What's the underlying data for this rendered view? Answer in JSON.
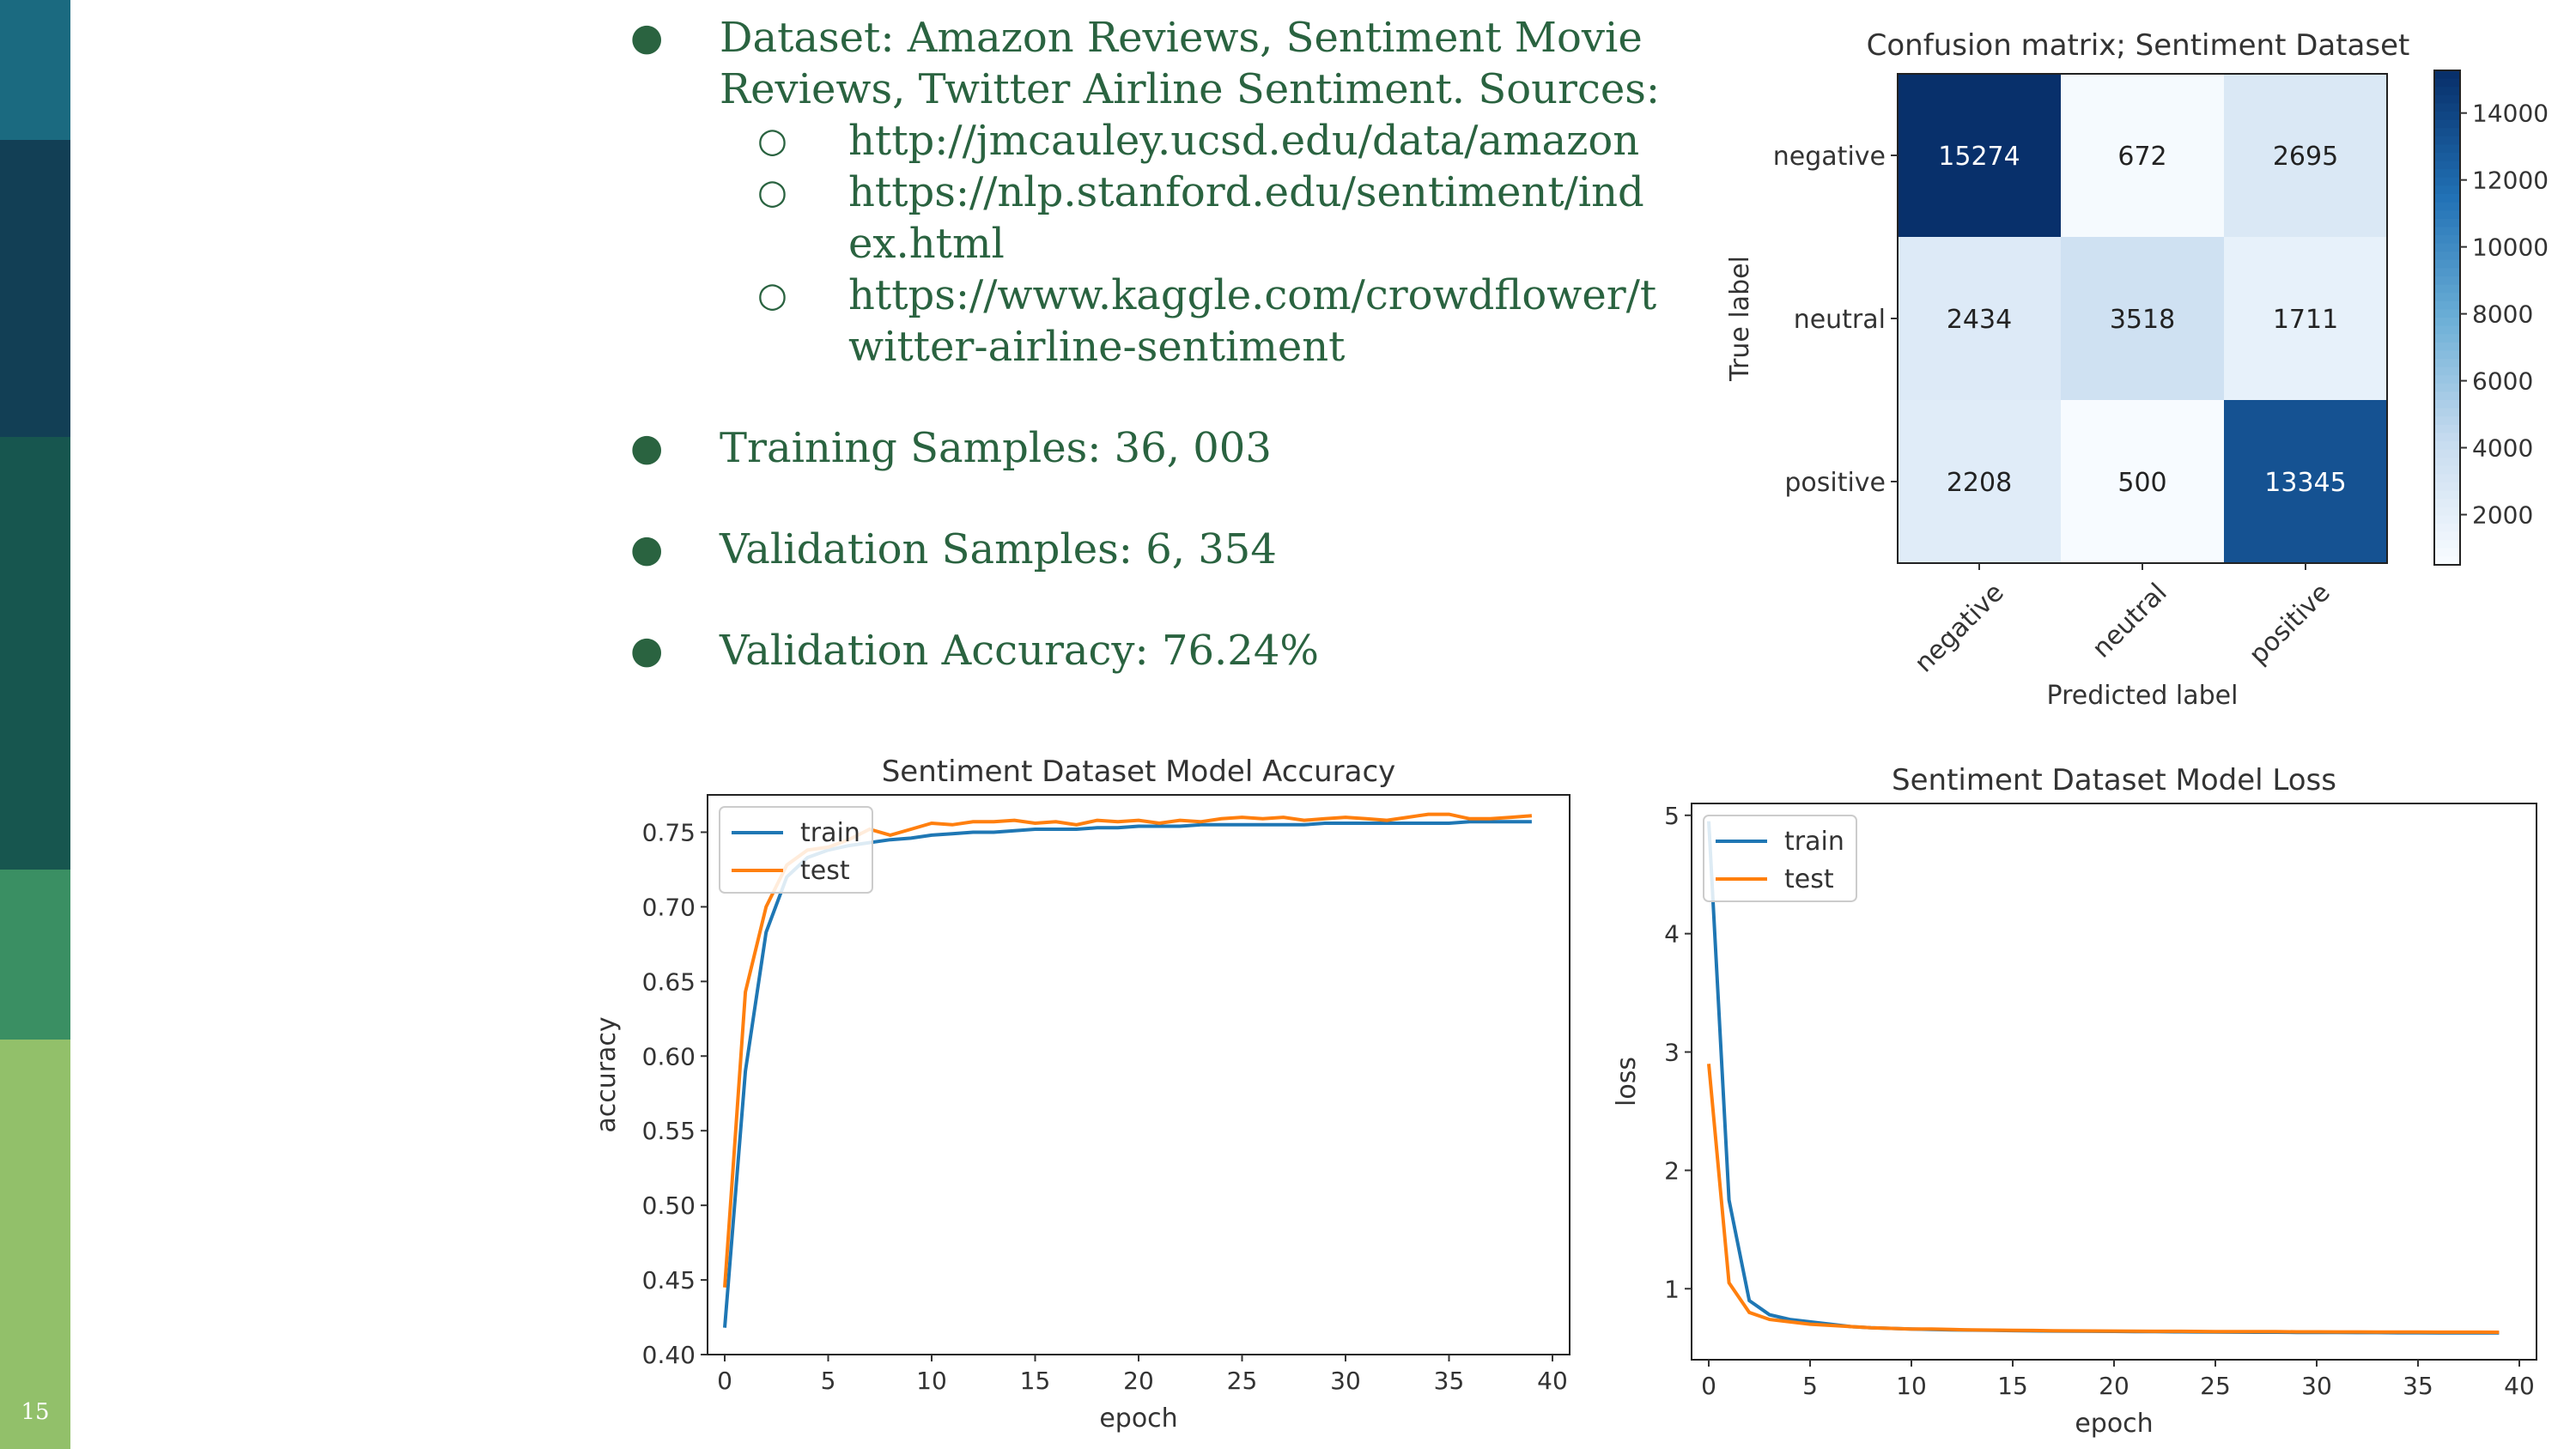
{
  "slide": {
    "number": "15"
  },
  "sidebar_colors": [
    "#1b6a80",
    "#123f55",
    "#17564f",
    "#3a8f63",
    "#92c06a"
  ],
  "bullets": {
    "dataset_line1": "Dataset: Amazon Reviews, Sentiment Movie",
    "dataset_line2": "Reviews, Twitter Airline Sentiment. Sources:",
    "sources": [
      {
        "line1": "http://jmcauley.ucsd.edu/data/amazon",
        "line2": ""
      },
      {
        "line1": "https://nlp.stanford.edu/sentiment/ind",
        "line2": "ex.html"
      },
      {
        "line1": "https://www.kaggle.com/crowdflower/t",
        "line2": "witter-airline-sentiment"
      }
    ],
    "training": "Training Samples: 36, 003",
    "validation": "Validation Samples: 6, 354",
    "accuracy": "Validation Accuracy: 76.24%"
  },
  "chart_data": [
    {
      "type": "heatmap",
      "title": "Confusion matrix; Sentiment Dataset",
      "xlabel": "Predicted label",
      "ylabel": "True label",
      "x_categories": [
        "negative",
        "neutral",
        "positive"
      ],
      "y_categories": [
        "negative",
        "neutral",
        "positive"
      ],
      "matrix": [
        [
          15274,
          672,
          2695
        ],
        [
          2434,
          3518,
          1711
        ],
        [
          2208,
          500,
          13345
        ]
      ],
      "colorbar_ticks": [
        2000,
        4000,
        6000,
        8000,
        10000,
        12000,
        14000
      ],
      "colorscale": "Blues"
    },
    {
      "type": "line",
      "title": "Sentiment Dataset Model Accuracy",
      "xlabel": "epoch",
      "ylabel": "accuracy",
      "xlim": [
        0,
        40
      ],
      "ylim": [
        0.4,
        0.775
      ],
      "x_ticks": [
        0,
        5,
        10,
        15,
        20,
        25,
        30,
        35,
        40
      ],
      "y_ticks": [
        "0.40",
        "0.45",
        "0.50",
        "0.55",
        "0.60",
        "0.65",
        "0.70",
        "0.75"
      ],
      "legend": "upper left",
      "series": [
        {
          "name": "train",
          "color": "#1f77b4",
          "values": [
            0.418,
            0.59,
            0.683,
            0.72,
            0.733,
            0.738,
            0.741,
            0.743,
            0.745,
            0.746,
            0.748,
            0.749,
            0.75,
            0.75,
            0.751,
            0.752,
            0.752,
            0.752,
            0.753,
            0.753,
            0.754,
            0.754,
            0.754,
            0.755,
            0.755,
            0.755,
            0.755,
            0.755,
            0.755,
            0.756,
            0.756,
            0.756,
            0.756,
            0.756,
            0.756,
            0.756,
            0.757,
            0.757,
            0.757,
            0.757
          ]
        },
        {
          "name": "test",
          "color": "#ff7f0e",
          "values": [
            0.445,
            0.643,
            0.7,
            0.728,
            0.738,
            0.74,
            0.745,
            0.752,
            0.748,
            0.752,
            0.756,
            0.755,
            0.757,
            0.757,
            0.758,
            0.756,
            0.757,
            0.755,
            0.758,
            0.757,
            0.758,
            0.756,
            0.758,
            0.757,
            0.759,
            0.76,
            0.759,
            0.76,
            0.758,
            0.759,
            0.76,
            0.759,
            0.758,
            0.76,
            0.762,
            0.762,
            0.759,
            0.759,
            0.76,
            0.761
          ]
        }
      ]
    },
    {
      "type": "line",
      "title": "Sentiment Dataset Model Loss",
      "xlabel": "epoch",
      "ylabel": "loss",
      "xlim": [
        0,
        40
      ],
      "ylim": [
        0.4,
        5.1
      ],
      "x_ticks": [
        0,
        5,
        10,
        15,
        20,
        25,
        30,
        35,
        40
      ],
      "y_ticks": [
        "1",
        "2",
        "3",
        "4",
        "5"
      ],
      "legend": "upper left",
      "series": [
        {
          "name": "train",
          "color": "#1f77b4",
          "values": [
            4.95,
            1.75,
            0.9,
            0.78,
            0.74,
            0.72,
            0.7,
            0.68,
            0.67,
            0.665,
            0.66,
            0.655,
            0.652,
            0.65,
            0.648,
            0.646,
            0.644,
            0.642,
            0.641,
            0.64,
            0.639,
            0.638,
            0.637,
            0.636,
            0.635,
            0.634,
            0.633,
            0.632,
            0.632,
            0.631,
            0.63,
            0.63,
            0.629,
            0.629,
            0.628,
            0.628,
            0.627,
            0.627,
            0.627,
            0.626
          ]
        },
        {
          "name": "test",
          "color": "#ff7f0e",
          "values": [
            2.9,
            1.05,
            0.8,
            0.74,
            0.72,
            0.7,
            0.69,
            0.68,
            0.67,
            0.665,
            0.66,
            0.66,
            0.655,
            0.652,
            0.65,
            0.648,
            0.647,
            0.645,
            0.644,
            0.643,
            0.642,
            0.641,
            0.64,
            0.64,
            0.639,
            0.638,
            0.638,
            0.637,
            0.637,
            0.636,
            0.636,
            0.635,
            0.635,
            0.634,
            0.634,
            0.634,
            0.633,
            0.633,
            0.633,
            0.632
          ]
        }
      ]
    }
  ]
}
